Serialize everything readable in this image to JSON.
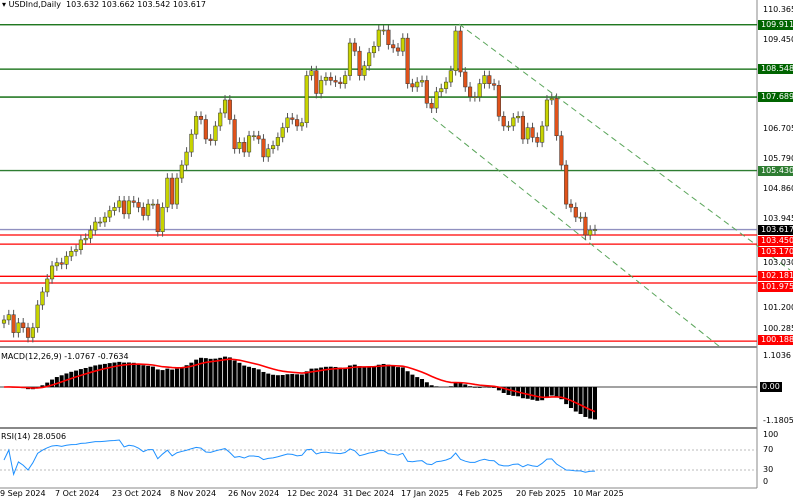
{
  "header": {
    "symbol": "USDInd,Daily",
    "ohlc": "103.632 103.662 103.542 103.617"
  },
  "price_axis": {
    "ticks": [
      "110.365",
      "109.450",
      "106.705",
      "105.790",
      "104.860",
      "103.945",
      "103.030",
      "101.200",
      "100.285"
    ]
  },
  "levels": [
    {
      "value": 109.911,
      "label": "109.911",
      "color": "#006400"
    },
    {
      "value": 108.548,
      "label": "108.548",
      "color": "#006400"
    },
    {
      "value": 107.689,
      "label": "107.689",
      "color": "#006400"
    },
    {
      "value": 105.43,
      "label": "105.430",
      "color": "#2e7d32"
    },
    {
      "value": 103.617,
      "label": "103.617",
      "color": "#000000"
    },
    {
      "value": 103.45,
      "label": "103.450",
      "color": "#ff0000"
    },
    {
      "value": 103.17,
      "label": "103.170",
      "color": "#ff0000"
    },
    {
      "value": 102.181,
      "label": "102.181",
      "color": "#ff0000"
    },
    {
      "value": 101.975,
      "label": "101.975",
      "color": "#ff0000"
    },
    {
      "value": 100.188,
      "label": "100.188",
      "color": "#ff0000"
    }
  ],
  "colors": {
    "bull": "#c8d400",
    "bear": "#e0521a",
    "signal": "#ff0000",
    "rsi": "#1e90ff",
    "trend": "#5aa55a"
  },
  "candles": {
    "closes": [
      100.84,
      101.0,
      100.45,
      100.75,
      100.6,
      100.3,
      100.6,
      101.3,
      101.7,
      102.1,
      102.5,
      102.6,
      102.55,
      102.8,
      102.95,
      103.0,
      103.3,
      103.35,
      103.6,
      103.85,
      103.85,
      104.0,
      104.2,
      104.3,
      104.5,
      104.1,
      104.5,
      104.45,
      104.3,
      104.05,
      104.4,
      104.4,
      103.55,
      104.3,
      105.2,
      104.4,
      105.2,
      105.6,
      106.0,
      106.55,
      107.1,
      107.0,
      106.4,
      106.35,
      106.8,
      107.2,
      107.6,
      107.0,
      106.1,
      106.3,
      106.0,
      106.5,
      106.5,
      106.4,
      105.85,
      106.1,
      106.2,
      106.45,
      106.75,
      107.05,
      107.0,
      106.8,
      106.9,
      108.35,
      108.5,
      107.8,
      108.2,
      108.3,
      108.2,
      108.15,
      108.1,
      108.35,
      109.35,
      109.1,
      108.35,
      108.65,
      109.05,
      109.25,
      109.75,
      109.75,
      109.3,
      109.2,
      109.1,
      109.5,
      108.1,
      108.0,
      108.15,
      108.2,
      107.5,
      107.35,
      107.85,
      107.95,
      108.15,
      108.5,
      109.72,
      108.46,
      108.0,
      107.7,
      107.7,
      108.1,
      108.35,
      108.1,
      108.05,
      107.1,
      106.8,
      106.8,
      107.05,
      107.1,
      106.4,
      106.75,
      106.45,
      106.3,
      106.8,
      107.6,
      107.65,
      106.5,
      105.6,
      104.4,
      104.3,
      104.0,
      104.0,
      103.45,
      103.6,
      103.617
    ]
  },
  "macd": {
    "label": "MACD(12,26,9) -1.0767 -0.7634",
    "ticks": [
      "1.1036",
      "0.00",
      "-1.1805"
    ]
  },
  "rsi": {
    "label": "RSI(14) 28.0506",
    "ticks": [
      "100",
      "70",
      "30",
      "0"
    ]
  },
  "dates": [
    "9 Sep 2024",
    "7 Oct 2024",
    "23 Oct 2024",
    "8 Nov 2024",
    "26 Nov 2024",
    "12 Dec 2024",
    "31 Dec 2024",
    "17 Jan 2025",
    "4 Feb 2025",
    "20 Feb 2025",
    "10 Mar 2025"
  ]
}
